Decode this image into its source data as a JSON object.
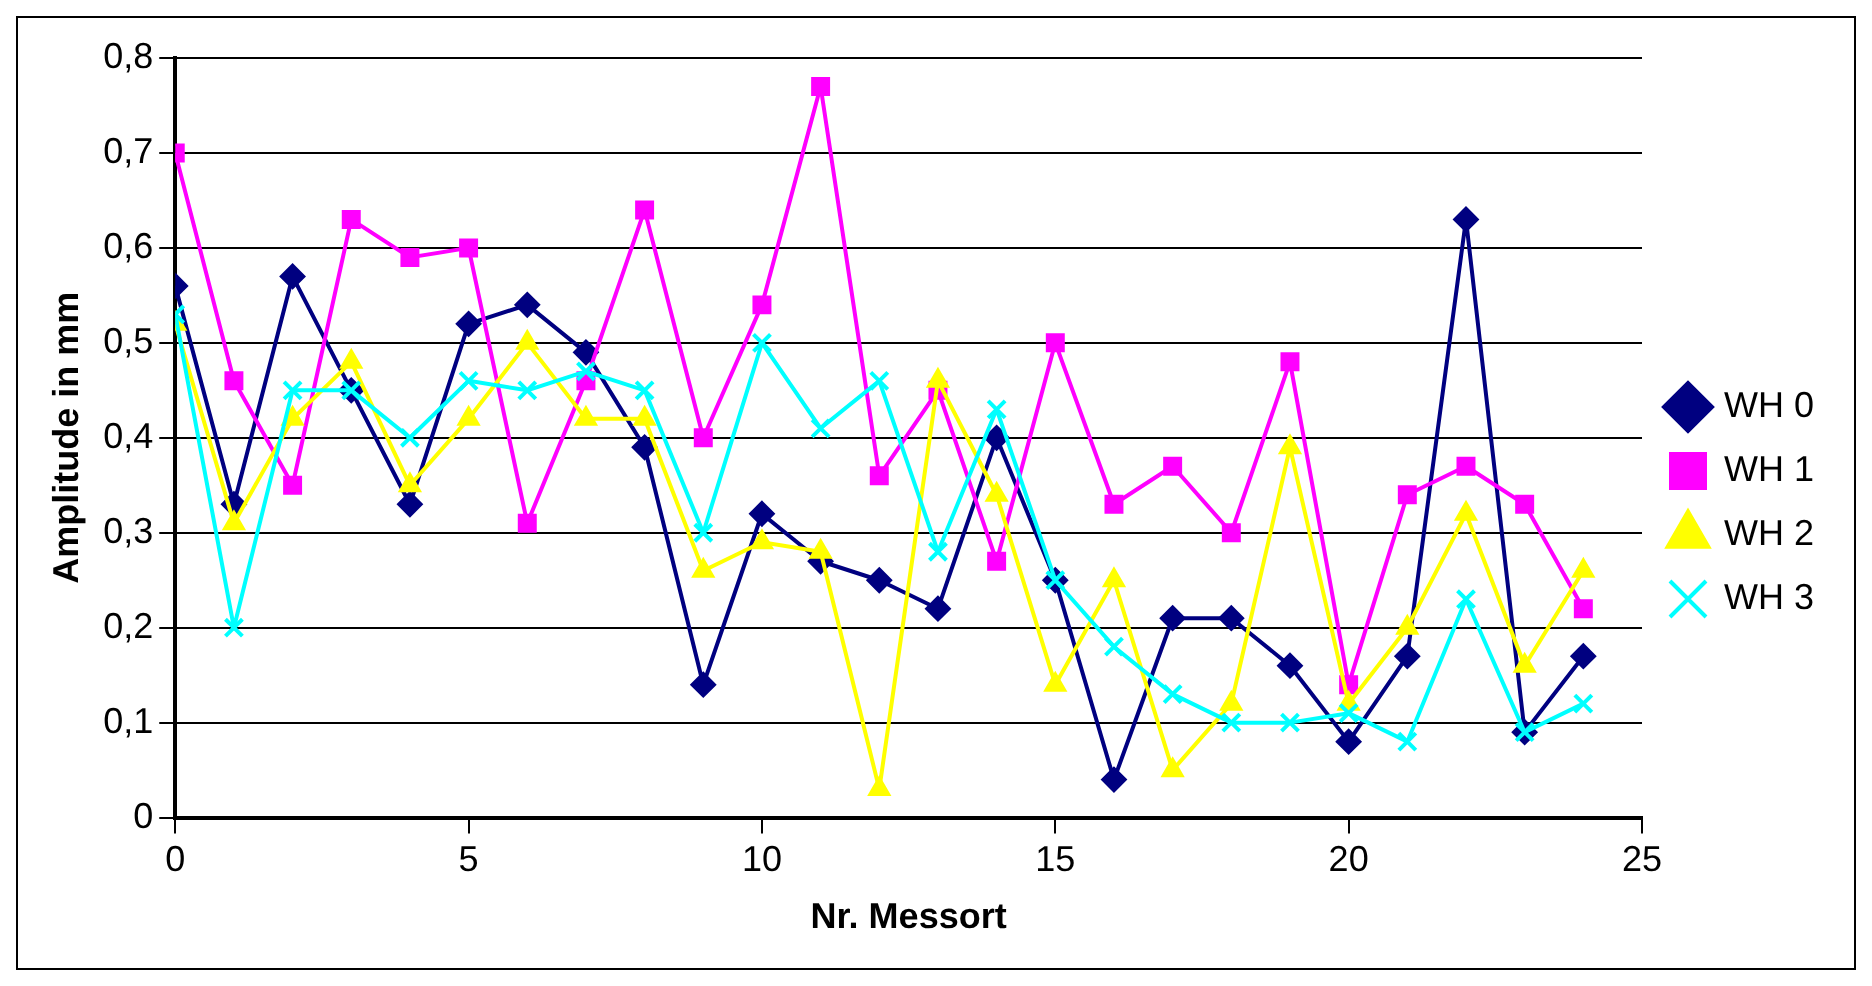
{
  "chart_data": {
    "type": "line",
    "xlabel": "Nr. Messort",
    "ylabel": "Amplitude in mm",
    "x": [
      0,
      1,
      2,
      3,
      4,
      5,
      6,
      7,
      8,
      9,
      10,
      11,
      12,
      13,
      14,
      15,
      16,
      17,
      18,
      19,
      20,
      21,
      22,
      23,
      24
    ],
    "series": [
      {
        "name": "WH 0",
        "color": "#000080",
        "marker": "diamond",
        "values": [
          0.56,
          0.33,
          0.57,
          0.45,
          0.33,
          0.52,
          0.54,
          0.49,
          0.39,
          0.14,
          0.32,
          0.27,
          0.25,
          0.22,
          0.4,
          0.25,
          0.04,
          0.21,
          0.21,
          0.16,
          0.08,
          0.17,
          0.63,
          0.09,
          0.17
        ]
      },
      {
        "name": "WH 1",
        "color": "#ff00ff",
        "marker": "square",
        "values": [
          0.7,
          0.46,
          0.35,
          0.63,
          0.59,
          0.6,
          0.31,
          0.46,
          0.64,
          0.4,
          0.54,
          0.77,
          0.36,
          0.45,
          0.27,
          0.5,
          0.33,
          0.37,
          0.3,
          0.48,
          0.14,
          0.34,
          0.37,
          0.33,
          0.22
        ]
      },
      {
        "name": "WH 2",
        "color": "#ffff00",
        "marker": "triangle",
        "values": [
          0.52,
          0.31,
          0.42,
          0.48,
          0.35,
          0.42,
          0.5,
          0.42,
          0.42,
          0.26,
          0.29,
          0.28,
          0.03,
          0.46,
          0.34,
          0.14,
          0.25,
          0.05,
          0.12,
          0.39,
          0.12,
          0.2,
          0.32,
          0.16,
          0.26
        ]
      },
      {
        "name": "WH 3",
        "color": "#00ffff",
        "marker": "cross",
        "values": [
          0.53,
          0.2,
          0.45,
          0.45,
          0.4,
          0.46,
          0.45,
          0.47,
          0.45,
          0.3,
          0.5,
          0.41,
          0.46,
          0.28,
          0.43,
          0.25,
          0.18,
          0.13,
          0.1,
          0.1,
          0.11,
          0.08,
          0.23,
          0.09,
          0.12
        ]
      }
    ],
    "xlim": [
      0,
      25
    ],
    "xticks": [
      0,
      5,
      10,
      15,
      20,
      25
    ],
    "ylim": [
      0,
      0.8
    ],
    "yticks": [
      0,
      {
        "value": 0.1,
        "label": "0,1"
      },
      {
        "value": 0.2,
        "label": "0,2"
      },
      {
        "value": 0.3,
        "label": "0,3"
      },
      {
        "value": 0.4,
        "label": "0,4"
      },
      {
        "value": 0.5,
        "label": "0,5"
      },
      {
        "value": 0.6,
        "label": "0,6"
      },
      {
        "value": 0.7,
        "label": "0,7"
      },
      {
        "value": 0.8,
        "label": "0,8"
      }
    ],
    "grid": "y",
    "legend": "right",
    "line_style": "solid"
  }
}
